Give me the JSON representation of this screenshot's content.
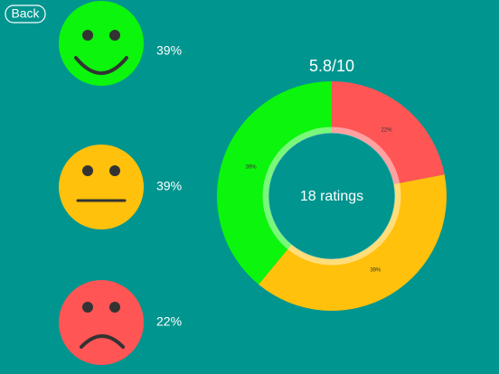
{
  "back_button": "Back",
  "rating_list": [
    {
      "label": "39%"
    },
    {
      "label": "39%"
    },
    {
      "label": "22%"
    }
  ],
  "chart_data": {
    "type": "pie",
    "title": "5.8/10",
    "center_label": "18 ratings",
    "categories": [
      "Bad",
      "Neutral",
      "Good"
    ],
    "values": [
      22,
      39,
      39
    ],
    "value_labels": [
      "22%",
      "39%",
      "39%"
    ],
    "colors": [
      "#ff5555",
      "#ffc10c",
      "#0cf50c"
    ]
  }
}
